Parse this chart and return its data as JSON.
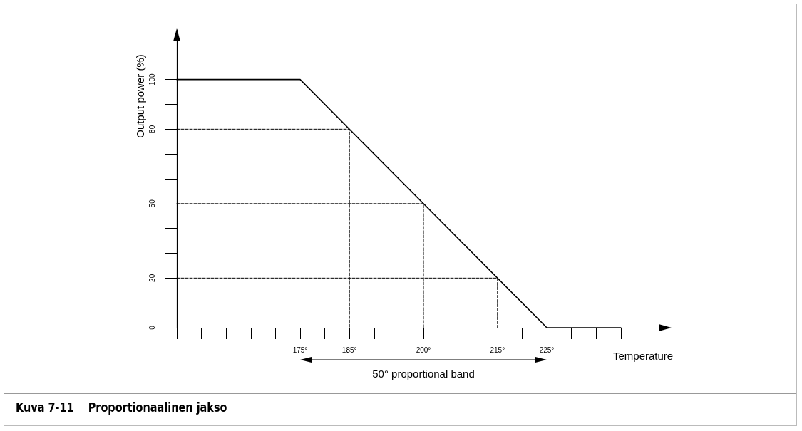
{
  "chart_data": {
    "type": "line",
    "title": "Kuva 7-11    Proportionaalinen jakso",
    "xlabel": "Temperature",
    "ylabel": "Output power (%)",
    "xlim": [
      150,
      250
    ],
    "ylim": [
      0,
      120
    ],
    "xticks": [
      {
        "value": 150,
        "label": null
      },
      {
        "value": 155,
        "label": null
      },
      {
        "value": 160,
        "label": null
      },
      {
        "value": 165,
        "label": null
      },
      {
        "value": 170,
        "label": null
      },
      {
        "value": 175,
        "label": "175°"
      },
      {
        "value": 180,
        "label": null
      },
      {
        "value": 185,
        "label": "185°"
      },
      {
        "value": 190,
        "label": null
      },
      {
        "value": 195,
        "label": null
      },
      {
        "value": 200,
        "label": "200°"
      },
      {
        "value": 205,
        "label": null
      },
      {
        "value": 210,
        "label": null
      },
      {
        "value": 215,
        "label": "215°"
      },
      {
        "value": 220,
        "label": null
      },
      {
        "value": 225,
        "label": "225°"
      },
      {
        "value": 230,
        "label": null
      },
      {
        "value": 235,
        "label": null
      },
      {
        "value": 240,
        "label": null
      }
    ],
    "yticks": [
      0,
      {
        "value": 10,
        "label": null
      },
      20,
      {
        "value": 30,
        "label": null
      },
      {
        "value": 40,
        "label": null
      },
      50,
      {
        "value": 60,
        "label": null
      },
      {
        "value": 70,
        "label": null
      },
      80,
      {
        "value": 90,
        "label": null
      },
      100
    ],
    "series": [
      {
        "x": [
          150,
          175,
          225,
          240
        ],
        "values": [
          100,
          100,
          0,
          0
        ],
        "color": "#000000",
        "line_style": "solid"
      },
      {
        "x": [
          150,
          185,
          185
        ],
        "values": [
          80,
          80,
          0
        ],
        "color": "#000000",
        "line_style": "dashed"
      },
      {
        "x": [
          150,
          200,
          200
        ],
        "values": [
          50,
          50,
          0
        ],
        "color": "#000000",
        "line_style": "dashed"
      },
      {
        "x": [
          150,
          215,
          215
        ],
        "values": [
          20,
          20,
          0
        ],
        "color": "#000000",
        "line_style": "dashed"
      }
    ],
    "annotations": [
      "50° proportional band"
    ],
    "marker": "none",
    "grid": false
  }
}
